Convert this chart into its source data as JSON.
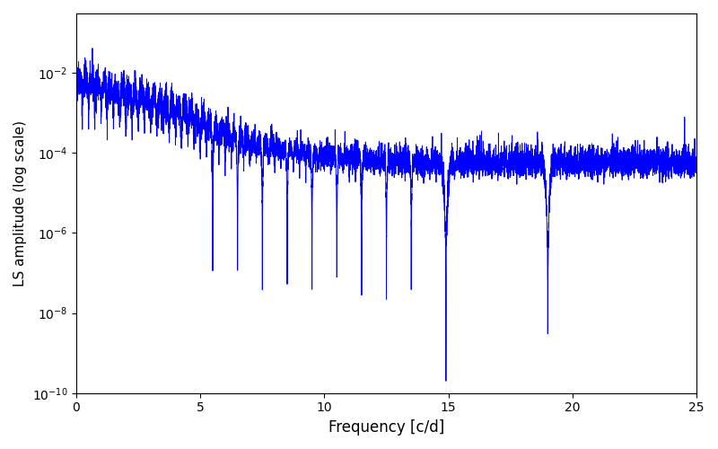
{
  "xlabel": "Frequency [c/d]",
  "ylabel": "LS amplitude (log scale)",
  "xlim": [
    0,
    25
  ],
  "ylim": [
    1e-10,
    0.3
  ],
  "line_color": "#0000ff",
  "line_width": 0.7,
  "figsize": [
    8.0,
    5.0
  ],
  "dpi": 100,
  "background_color": "#ffffff",
  "seed": 42,
  "n_points": 8000,
  "freq_max": 25.0
}
